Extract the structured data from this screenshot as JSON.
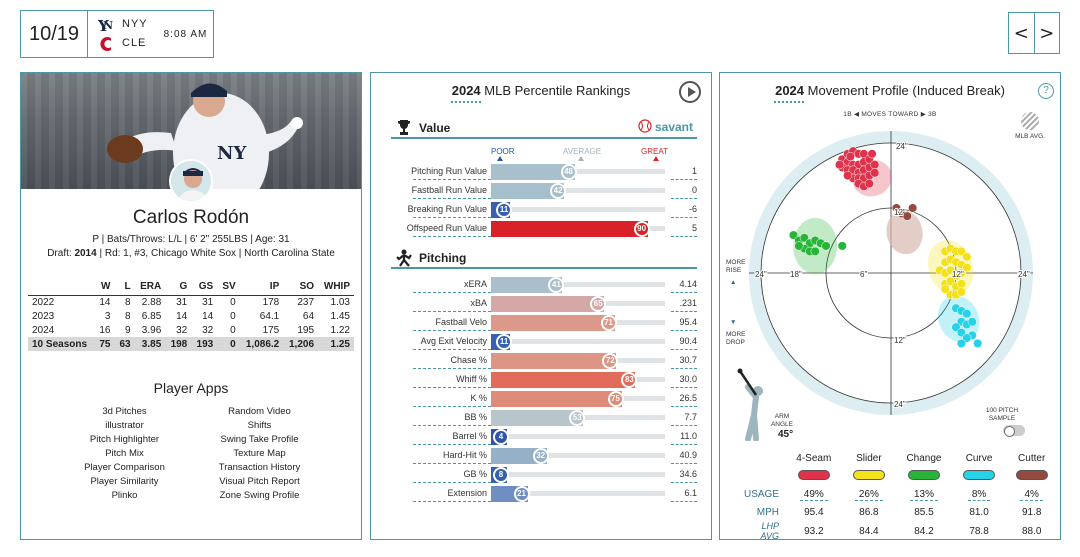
{
  "header": {
    "date": "10/19",
    "away_team": "NYY",
    "home_team": "CLE",
    "game_time": "8:08 AM",
    "nav_prev": "<",
    "nav_next": ">"
  },
  "player": {
    "name": "Carlos Rodón",
    "bio": "P | Bats/Throws: L/L | 6' 2\" 255LBS | Age: 31",
    "draft_label": "Draft:",
    "draft_year": "2014",
    "draft_rest": "| Rd: 1, #3, Chicago White Sox | North Carolina State",
    "stats": {
      "headers": [
        "",
        "W",
        "L",
        "ERA",
        "G",
        "GS",
        "SV",
        "IP",
        "SO",
        "WHIP"
      ],
      "rows": [
        [
          "2022",
          "14",
          "8",
          "2.88",
          "31",
          "31",
          "0",
          "178",
          "237",
          "1.03"
        ],
        [
          "2023",
          "3",
          "8",
          "6.85",
          "14",
          "14",
          "0",
          "64.1",
          "64",
          "1.45"
        ],
        [
          "2024",
          "16",
          "9",
          "3.96",
          "32",
          "32",
          "0",
          "175",
          "195",
          "1.22"
        ]
      ],
      "total": [
        "10 Seasons",
        "75",
        "63",
        "3.85",
        "198",
        "193",
        "0",
        "1,086.2",
        "1,206",
        "1.25"
      ]
    },
    "apps_title": "Player Apps",
    "apps": [
      "3d Pitches",
      "Random Video",
      "illustrator",
      "Shifts",
      "Pitch Highlighter",
      "Swing Take Profile",
      "Pitch Mix",
      "Texture Map",
      "Player Comparison",
      "Transaction History",
      "Player Similarity",
      "Visual Pitch Report",
      "Plinko",
      "Zone Swing Profile"
    ]
  },
  "percentile": {
    "year": "2024",
    "title": "MLB Percentile Rankings",
    "value_section": "Value",
    "savant": "savant",
    "scale": {
      "poor": "POOR",
      "average": "AVERAGE",
      "great": "GREAT"
    },
    "value_rows": [
      {
        "label": "Pitching Run Value",
        "pct": 48,
        "value": "1",
        "color": "#a8c0cc"
      },
      {
        "label": "Fastball Run Value",
        "pct": 42,
        "value": "0",
        "color": "#a6bfcc"
      },
      {
        "label": "Breaking Run Value",
        "pct": 11,
        "value": "-6",
        "color": "#3761b0"
      },
      {
        "label": "Offspeed Run Value",
        "pct": 90,
        "value": "5",
        "color": "#d82129"
      }
    ],
    "pitching_section": "Pitching",
    "pitching_rows": [
      {
        "label": "xERA",
        "pct": 41,
        "value": "4.14",
        "color": "#a9bfcb"
      },
      {
        "label": "xBA",
        "pct": 65,
        "value": ".231",
        "color": "#d4a8a6"
      },
      {
        "label": "Fastball Velo",
        "pct": 71,
        "value": "95.4",
        "color": "#dc9889"
      },
      {
        "label": "Avg Exit Velocity",
        "pct": 11,
        "value": "90.4",
        "color": "#3761b0"
      },
      {
        "label": "Chase %",
        "pct": 72,
        "value": "30.7",
        "color": "#dd9685"
      },
      {
        "label": "Whiff %",
        "pct": 83,
        "value": "30.0",
        "color": "#e06b5a"
      },
      {
        "label": "K %",
        "pct": 75,
        "value": "26.5",
        "color": "#df8b79"
      },
      {
        "label": "BB %",
        "pct": 53,
        "value": "7.7",
        "color": "#b8c5cb"
      },
      {
        "label": "Barrel %",
        "pct": 4,
        "value": "11.0",
        "color": "#2f56a8"
      },
      {
        "label": "Hard-Hit %",
        "pct": 32,
        "value": "40.9",
        "color": "#95b1c9"
      },
      {
        "label": "GB %",
        "pct": 8,
        "value": "34.6",
        "color": "#3560ae"
      },
      {
        "label": "Extension",
        "pct": 21,
        "value": "6.1",
        "color": "#6f8fc3"
      }
    ]
  },
  "movement": {
    "year": "2024",
    "title": "Movement Profile (Induced Break)",
    "help": "?",
    "moves_toward": "1B ◀  MOVES TOWARD  ▶ 3B",
    "mlb_avg": "MLB AVG.",
    "more_rise": "MORE RISE",
    "more_drop": "MORE DROP",
    "ring_labels": {
      "r24": "24\"",
      "r12": "12\"",
      "r18": "18\"",
      "r6": "6\""
    },
    "arm_angle_label": "ARM ANGLE",
    "arm_angle": "45°",
    "sample_label": "100 PITCH SAMPLE",
    "rows": {
      "usage": "USAGE",
      "mph": "MPH",
      "lhp": "LHP AVG"
    },
    "pitches": [
      {
        "name": "4-Seam",
        "color": "#e0324a",
        "usage": "49%",
        "mph": "95.4",
        "lhp": "93.2"
      },
      {
        "name": "Slider",
        "color": "#f3e11a",
        "usage": "26%",
        "mph": "86.8",
        "lhp": "84.4"
      },
      {
        "name": "Change",
        "color": "#27b537",
        "usage": "13%",
        "mph": "85.5",
        "lhp": "84.2"
      },
      {
        "name": "Curve",
        "color": "#25d2e8",
        "usage": "8%",
        "mph": "81.0",
        "lhp": "78.8"
      },
      {
        "name": "Cutter",
        "color": "#924b3e",
        "usage": "4%",
        "mph": "91.8",
        "lhp": "88.0"
      }
    ]
  }
}
